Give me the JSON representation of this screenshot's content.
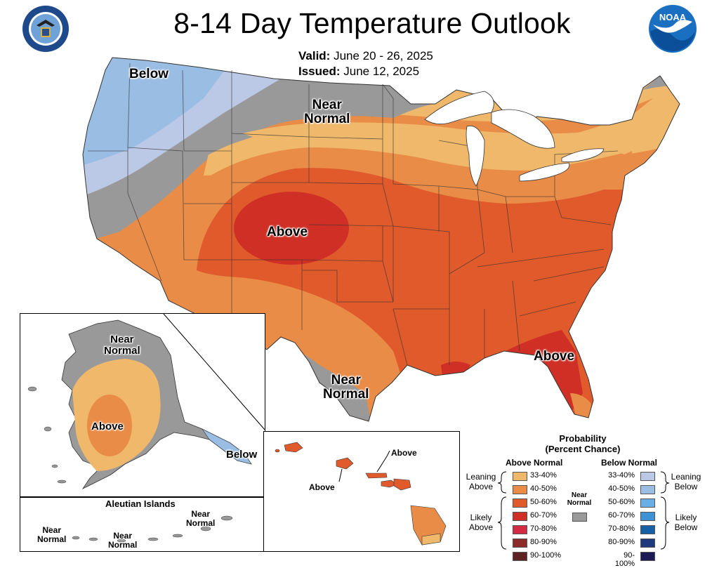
{
  "header": {
    "title": "8-14 Day Temperature Outlook",
    "valid_label": "Valid:",
    "valid_value": "June 20 - 26, 2025",
    "issued_label": "Issued:",
    "issued_value": "June 12, 2025"
  },
  "map_labels": {
    "conus_below": "Below",
    "conus_near_1": "Near",
    "conus_near_2": "Normal",
    "conus_above_center": "Above",
    "conus_above_southeast": "Above",
    "conus_near_tx_1": "Near",
    "conus_near_tx_2": "Normal",
    "ak_near_1": "Near",
    "ak_near_2": "Normal",
    "ak_above": "Above",
    "ak_below": "Below",
    "aleutian_title": "Aleutian Islands",
    "aleut_near_a_1": "Near",
    "aleut_near_a_2": "Normal",
    "aleut_near_b_1": "Near",
    "aleut_near_b_2": "Normal",
    "aleut_near_c_1": "Near",
    "aleut_near_c_2": "Normal",
    "hi_above_1": "Above",
    "hi_above_2": "Above"
  },
  "legend": {
    "title_1": "Probability",
    "title_2": "(Percent Chance)",
    "above_header": "Above Normal",
    "below_header": "Below Normal",
    "near_1": "Near",
    "near_2": "Normal",
    "leaning_above_1": "Leaning",
    "leaning_above_2": "Above",
    "likely_above_1": "Likely",
    "likely_above_2": "Above",
    "leaning_below_1": "Leaning",
    "leaning_below_2": "Below",
    "likely_below_1": "Likely",
    "likely_below_2": "Below",
    "above": [
      {
        "range": "33-40%",
        "color": "#efb86a"
      },
      {
        "range": "40-50%",
        "color": "#e98c47"
      },
      {
        "range": "50-60%",
        "color": "#e05a2c"
      },
      {
        "range": "60-70%",
        "color": "#cf2f24"
      },
      {
        "range": "70-80%",
        "color": "#d22b43"
      },
      {
        "range": "80-90%",
        "color": "#8d2b2b"
      },
      {
        "range": "90-100%",
        "color": "#5e2323"
      }
    ],
    "below": [
      {
        "range": "33-40%",
        "color": "#bcc9e6"
      },
      {
        "range": "40-50%",
        "color": "#99bde3"
      },
      {
        "range": "50-60%",
        "color": "#69afe6"
      },
      {
        "range": "60-70%",
        "color": "#3d93d6"
      },
      {
        "range": "70-80%",
        "color": "#1661a6"
      },
      {
        "range": "80-90%",
        "color": "#1f3a7c"
      },
      {
        "range": "90-100%",
        "color": "#1c1a55"
      }
    ],
    "near_color": "#999999"
  },
  "colors": {
    "near": "#999999",
    "above_33": "#efb86a",
    "above_40": "#e98c47",
    "above_50": "#e05a2c",
    "above_60": "#cf2f24",
    "below_33": "#bcc9e6",
    "below_40": "#99bde3",
    "lakes": "#ffffff",
    "border": "#333333"
  },
  "icons": {
    "left_logo": "department-of-commerce-seal",
    "right_logo": "noaa-logo"
  }
}
